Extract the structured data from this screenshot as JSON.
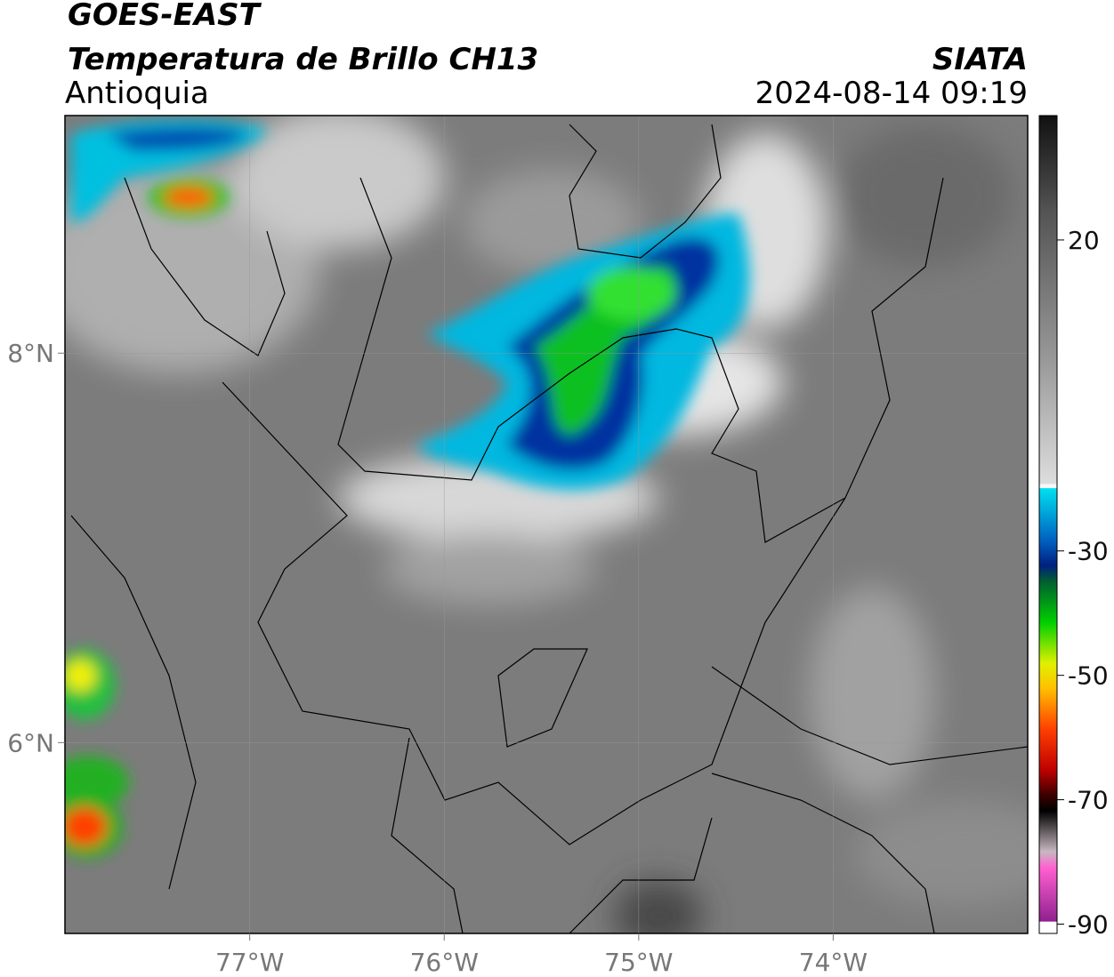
{
  "header": {
    "satellite": "GOES-EAST",
    "product": "Temperatura de Brillo CH13",
    "region": "Antioquia",
    "agency": "SIATA",
    "datetime": "2024-08-14 09:19"
  },
  "map": {
    "lonlim": [
      -77.95,
      -73.0
    ],
    "latlim": [
      5.02,
      9.22
    ],
    "lonticks": [
      {
        "value": -77,
        "label": "77°W"
      },
      {
        "value": -76,
        "label": "76°W"
      },
      {
        "value": -75,
        "label": "75°W"
      },
      {
        "value": -74,
        "label": "74°W"
      }
    ],
    "latticks": [
      {
        "value": 8,
        "label": "8°N"
      },
      {
        "value": 6,
        "label": "6°N"
      }
    ],
    "grid": true
  },
  "colorbar": {
    "lim": [
      -91.5,
      40
    ],
    "ticks": [
      20,
      -30,
      -50,
      -70,
      -90
    ]
  }
}
